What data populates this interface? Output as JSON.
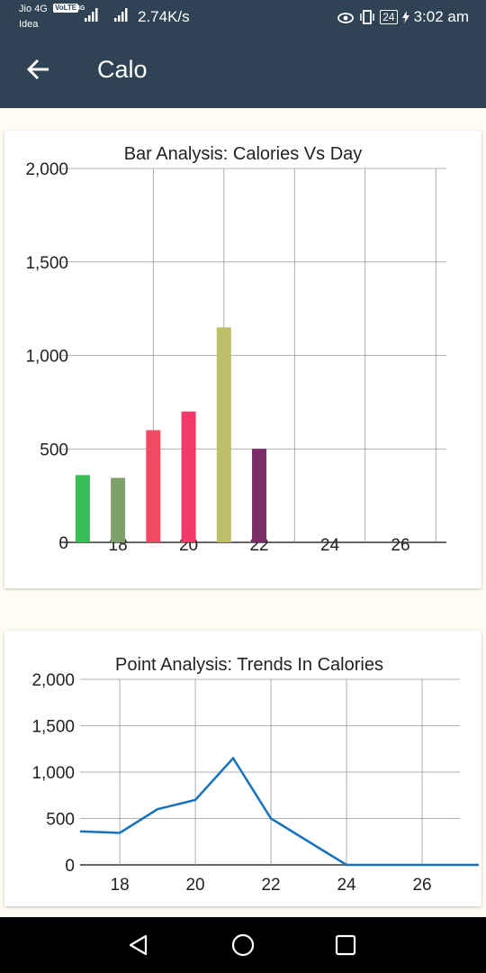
{
  "status_bar": {
    "carrier_1": "Jio 4G",
    "volte_badge": "VoLTE",
    "network_type": "4G",
    "carrier_2": "Idea",
    "net_speed": "2.74K/s",
    "battery": "24",
    "time": "3:02 am",
    "icons": [
      "eye-comfort-icon",
      "vibrate-icon",
      "signal-icon",
      "battery-icon",
      "charging-icon"
    ]
  },
  "toolbar": {
    "title": "Calo",
    "back_icon": "arrow-left-icon"
  },
  "nav_bar": {
    "icons": [
      "back-triangle-icon",
      "home-circle-icon",
      "recents-square-icon"
    ]
  },
  "chart_data": [
    {
      "type": "bar",
      "title": "Bar Analysis: Calories Vs Day",
      "xlabel": "",
      "ylabel": "",
      "x": [
        17,
        18,
        19,
        20,
        21,
        22
      ],
      "values": [
        360,
        345,
        600,
        700,
        1150,
        500
      ],
      "colors": [
        "#39be5a",
        "#7f9f6b",
        "#f24a64",
        "#f3386a",
        "#c0bf69",
        "#7c2c69"
      ],
      "xlim": [
        16.8,
        27.3
      ],
      "ylim": [
        0,
        2000
      ],
      "y_ticks": [
        0,
        500,
        1000,
        1500,
        2000
      ],
      "y_tick_labels": [
        "0",
        "500",
        "1,000",
        "1,500",
        "2,000"
      ],
      "x_ticks": [
        18,
        20,
        22,
        24,
        26
      ],
      "x_tick_labels": [
        "18",
        "20",
        "22",
        "24",
        "26"
      ],
      "grid": true
    },
    {
      "type": "line",
      "title": "Point Analysis: Trends In Calories",
      "xlabel": "",
      "ylabel": "",
      "x": [
        16.95,
        17,
        18,
        19,
        20,
        21,
        22,
        23,
        24,
        25,
        26,
        27,
        27.5
      ],
      "values": [
        360,
        360,
        345,
        600,
        700,
        1150,
        500,
        250,
        0,
        0,
        0,
        0,
        0
      ],
      "color": "#1672bd",
      "xlim": [
        16.95,
        27
      ],
      "ylim": [
        0,
        2000
      ],
      "y_ticks": [
        0,
        500,
        1000,
        1500,
        2000
      ],
      "y_tick_labels": [
        "0",
        "500",
        "1,000",
        "1,500",
        "2,000"
      ],
      "x_ticks": [
        18,
        20,
        22,
        24,
        26
      ],
      "x_tick_labels": [
        "18",
        "20",
        "22",
        "24",
        "26"
      ],
      "grid": true
    }
  ]
}
